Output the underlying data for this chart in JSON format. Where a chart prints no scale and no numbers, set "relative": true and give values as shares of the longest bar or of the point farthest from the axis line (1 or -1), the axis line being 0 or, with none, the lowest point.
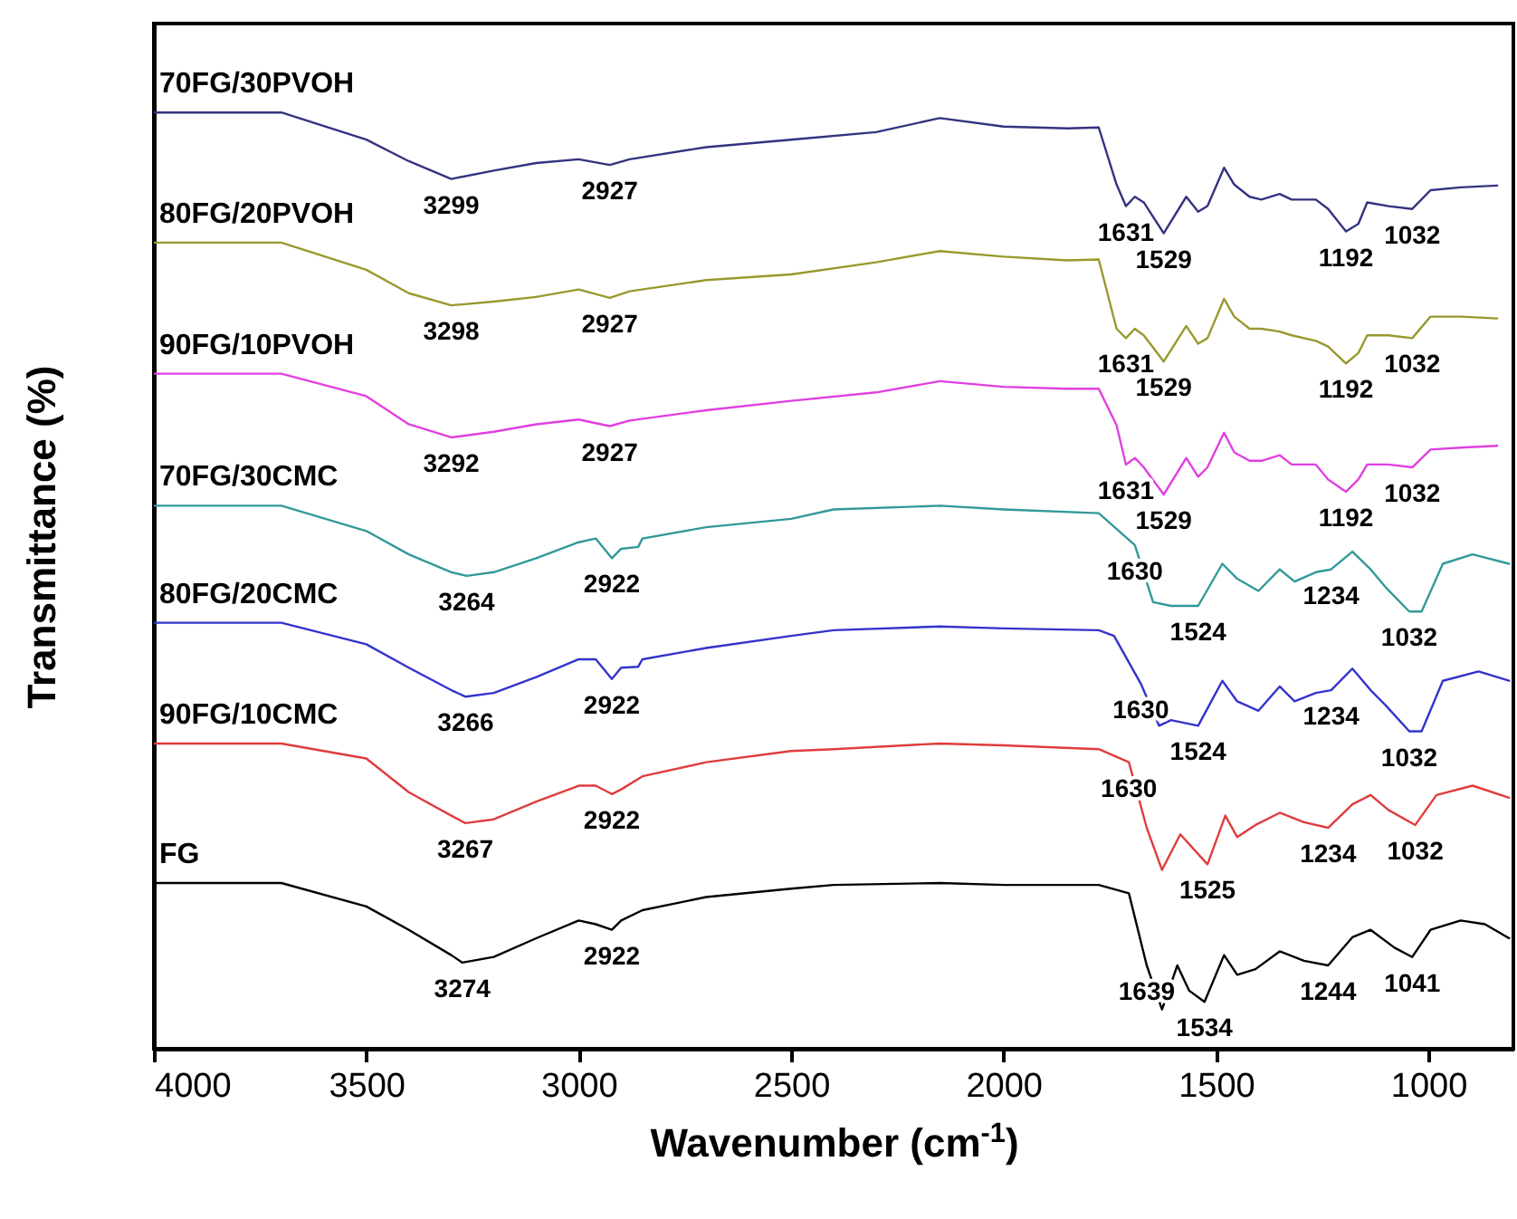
{
  "chart_data": {
    "type": "line",
    "relative": true,
    "xlabel": "Wavenumber (cm$^{-1}$)",
    "ylabel": "Transmittance (%)",
    "xlim": [
      4000,
      800
    ],
    "xticks": [
      4000,
      3500,
      3000,
      2500,
      2000,
      1500,
      1000
    ],
    "series": [
      {
        "name": "70FG/30PVOH",
        "color": "#333380",
        "x": [
          4000,
          3700,
          3500,
          3400,
          3300,
          3200,
          3100,
          3000,
          2927,
          2880,
          2700,
          2500,
          2300,
          2150,
          2000,
          1850,
          1776,
          1734,
          1712,
          1691,
          1670,
          1623,
          1570,
          1542,
          1520,
          1481,
          1457,
          1421,
          1393,
          1350,
          1322,
          1265,
          1236,
          1194,
          1165,
          1144,
          1094,
          1038,
          995,
          924,
          838
        ],
        "values": [
          1.0,
          1.0,
          0.971,
          0.948,
          0.929,
          0.938,
          0.946,
          0.95,
          0.944,
          0.95,
          0.963,
          0.971,
          0.979,
          0.994,
          0.985,
          0.983,
          0.984,
          0.923,
          0.9,
          0.91,
          0.904,
          0.871,
          0.91,
          0.894,
          0.9,
          0.941,
          0.923,
          0.91,
          0.907,
          0.913,
          0.907,
          0.907,
          0.897,
          0.873,
          0.881,
          0.904,
          0.9,
          0.897,
          0.917,
          0.92,
          0.922
        ]
      },
      {
        "name": "80FG/20PVOH",
        "color": "#99992e",
        "x": [
          4000,
          3700,
          3500,
          3400,
          3300,
          3200,
          3100,
          3000,
          2927,
          2880,
          2700,
          2500,
          2300,
          2150,
          2000,
          1850,
          1776,
          1734,
          1712,
          1691,
          1670,
          1623,
          1570,
          1542,
          1520,
          1481,
          1457,
          1421,
          1393,
          1350,
          1322,
          1265,
          1236,
          1194,
          1165,
          1144,
          1094,
          1038,
          995,
          924,
          838
        ],
        "values": [
          0.861,
          0.861,
          0.832,
          0.807,
          0.794,
          0.798,
          0.803,
          0.811,
          0.802,
          0.809,
          0.821,
          0.827,
          0.84,
          0.852,
          0.846,
          0.842,
          0.843,
          0.769,
          0.759,
          0.769,
          0.762,
          0.734,
          0.772,
          0.753,
          0.759,
          0.801,
          0.782,
          0.769,
          0.769,
          0.766,
          0.762,
          0.756,
          0.75,
          0.732,
          0.743,
          0.762,
          0.762,
          0.759,
          0.782,
          0.782,
          0.78
        ]
      },
      {
        "name": "90FG/10PVOH",
        "color": "#e040e0",
        "x": [
          4000,
          3700,
          3500,
          3400,
          3300,
          3200,
          3100,
          3000,
          2927,
          2880,
          2700,
          2500,
          2300,
          2150,
          2000,
          1850,
          1776,
          1734,
          1712,
          1691,
          1670,
          1623,
          1570,
          1542,
          1520,
          1481,
          1457,
          1421,
          1393,
          1350,
          1322,
          1265,
          1236,
          1194,
          1165,
          1144,
          1094,
          1038,
          995,
          924,
          838
        ],
        "values": [
          0.721,
          0.721,
          0.697,
          0.667,
          0.653,
          0.659,
          0.667,
          0.672,
          0.665,
          0.671,
          0.682,
          0.692,
          0.701,
          0.713,
          0.707,
          0.705,
          0.705,
          0.666,
          0.624,
          0.631,
          0.621,
          0.592,
          0.631,
          0.611,
          0.621,
          0.658,
          0.637,
          0.628,
          0.628,
          0.634,
          0.624,
          0.624,
          0.608,
          0.595,
          0.608,
          0.624,
          0.624,
          0.621,
          0.64,
          0.642,
          0.644
        ]
      },
      {
        "name": "70FG/30CMC",
        "color": "#339999",
        "x": [
          4000,
          3700,
          3500,
          3400,
          3300,
          3264,
          3200,
          3100,
          3000,
          2960,
          2922,
          2900,
          2860,
          2850,
          2700,
          2500,
          2400,
          2150,
          2000,
          1776,
          1691,
          1648,
          1606,
          1542,
          1485,
          1450,
          1400,
          1350,
          1315,
          1265,
          1229,
          1179,
          1136,
          1101,
          1045,
          1016,
          966,
          896,
          810
        ],
        "values": [
          0.58,
          0.58,
          0.553,
          0.528,
          0.509,
          0.505,
          0.509,
          0.524,
          0.541,
          0.545,
          0.524,
          0.534,
          0.536,
          0.545,
          0.557,
          0.566,
          0.576,
          0.58,
          0.576,
          0.572,
          0.538,
          0.477,
          0.473,
          0.473,
          0.518,
          0.502,
          0.489,
          0.512,
          0.499,
          0.509,
          0.512,
          0.531,
          0.512,
          0.493,
          0.467,
          0.467,
          0.518,
          0.528,
          0.518
        ]
      },
      {
        "name": "80FG/20CMC",
        "color": "#3333cc",
        "x": [
          4000,
          3700,
          3500,
          3400,
          3300,
          3266,
          3200,
          3100,
          3000,
          2960,
          2922,
          2900,
          2860,
          2850,
          2700,
          2500,
          2400,
          2150,
          2000,
          1776,
          1740,
          1677,
          1634,
          1606,
          1542,
          1485,
          1450,
          1400,
          1350,
          1315,
          1265,
          1229,
          1179,
          1136,
          1101,
          1045,
          1016,
          966,
          882,
          810
        ],
        "values": [
          0.455,
          0.455,
          0.432,
          0.407,
          0.383,
          0.376,
          0.38,
          0.397,
          0.416,
          0.416,
          0.395,
          0.407,
          0.408,
          0.416,
          0.428,
          0.441,
          0.447,
          0.451,
          0.449,
          0.447,
          0.441,
          0.39,
          0.345,
          0.351,
          0.345,
          0.393,
          0.371,
          0.361,
          0.387,
          0.371,
          0.38,
          0.383,
          0.406,
          0.383,
          0.367,
          0.339,
          0.339,
          0.393,
          0.403,
          0.393
        ]
      },
      {
        "name": "90FG/10CMC",
        "color": "#e03c3c",
        "x": [
          4000,
          3700,
          3500,
          3400,
          3300,
          3267,
          3200,
          3100,
          3000,
          2960,
          2922,
          2900,
          2850,
          2700,
          2500,
          2400,
          2150,
          2000,
          1776,
          1705,
          1663,
          1627,
          1584,
          1520,
          1478,
          1450,
          1407,
          1350,
          1293,
          1236,
          1179,
          1136,
          1094,
          1031,
          981,
          896,
          810
        ],
        "values": [
          0.326,
          0.326,
          0.31,
          0.274,
          0.249,
          0.241,
          0.245,
          0.264,
          0.281,
          0.281,
          0.272,
          0.277,
          0.291,
          0.306,
          0.318,
          0.32,
          0.326,
          0.324,
          0.32,
          0.306,
          0.236,
          0.191,
          0.229,
          0.197,
          0.249,
          0.226,
          0.239,
          0.252,
          0.242,
          0.236,
          0.261,
          0.271,
          0.255,
          0.239,
          0.271,
          0.281,
          0.268
        ]
      },
      {
        "name": "FG",
        "color": "#000000",
        "x": [
          4000,
          3700,
          3500,
          3400,
          3300,
          3274,
          3200,
          3100,
          3000,
          2960,
          2922,
          2900,
          2850,
          2700,
          2500,
          2400,
          2150,
          2000,
          1776,
          1705,
          1663,
          1627,
          1591,
          1563,
          1527,
          1481,
          1450,
          1407,
          1350,
          1293,
          1236,
          1179,
          1136,
          1080,
          1038,
          995,
          924,
          867,
          810
        ],
        "values": [
          0.177,
          0.177,
          0.152,
          0.127,
          0.1,
          0.092,
          0.098,
          0.118,
          0.137,
          0.133,
          0.127,
          0.137,
          0.148,
          0.162,
          0.171,
          0.175,
          0.177,
          0.175,
          0.175,
          0.166,
          0.089,
          0.042,
          0.089,
          0.062,
          0.05,
          0.1,
          0.079,
          0.085,
          0.104,
          0.094,
          0.089,
          0.119,
          0.127,
          0.108,
          0.098,
          0.127,
          0.137,
          0.133,
          0.118
        ]
      }
    ],
    "annotations": [
      {
        "text": "3299",
        "x": 3300,
        "y": 0.929
      },
      {
        "text": "2927",
        "x": 2927,
        "y": 0.944
      },
      {
        "text": "1631",
        "x": 1712,
        "y": 0.9
      },
      {
        "text": "1529",
        "x": 1623,
        "y": 0.871
      },
      {
        "text": "1192",
        "x": 1194,
        "y": 0.873
      },
      {
        "text": "1032",
        "x": 1038,
        "y": 0.897
      },
      {
        "text": "3298",
        "x": 3300,
        "y": 0.794
      },
      {
        "text": "2927",
        "x": 2927,
        "y": 0.802
      },
      {
        "text": "1631",
        "x": 1712,
        "y": 0.759
      },
      {
        "text": "1529",
        "x": 1623,
        "y": 0.734
      },
      {
        "text": "1192",
        "x": 1194,
        "y": 0.732
      },
      {
        "text": "1032",
        "x": 1038,
        "y": 0.759
      },
      {
        "text": "3292",
        "x": 3300,
        "y": 0.653
      },
      {
        "text": "2927",
        "x": 2927,
        "y": 0.665
      },
      {
        "text": "1631",
        "x": 1712,
        "y": 0.624
      },
      {
        "text": "1529",
        "x": 1623,
        "y": 0.592
      },
      {
        "text": "1192",
        "x": 1194,
        "y": 0.595
      },
      {
        "text": "1032",
        "x": 1038,
        "y": 0.621
      },
      {
        "text": "3264",
        "x": 3264,
        "y": 0.505
      },
      {
        "text": "2922",
        "x": 2922,
        "y": 0.524
      },
      {
        "text": "1630",
        "x": 1691,
        "y": 0.538
      },
      {
        "text": "1524",
        "x": 1542,
        "y": 0.473
      },
      {
        "text": "1234",
        "x": 1229,
        "y": 0.512
      },
      {
        "text": "1032",
        "x": 1045,
        "y": 0.467
      },
      {
        "text": "3266",
        "x": 3266,
        "y": 0.376
      },
      {
        "text": "2922",
        "x": 2922,
        "y": 0.395
      },
      {
        "text": "1630",
        "x": 1677,
        "y": 0.39
      },
      {
        "text": "1524",
        "x": 1542,
        "y": 0.345
      },
      {
        "text": "1234",
        "x": 1229,
        "y": 0.383
      },
      {
        "text": "1032",
        "x": 1045,
        "y": 0.339
      },
      {
        "text": "3267",
        "x": 3267,
        "y": 0.241
      },
      {
        "text": "2922",
        "x": 2922,
        "y": 0.272
      },
      {
        "text": "1630",
        "x": 1705,
        "y": 0.306
      },
      {
        "text": "1525",
        "x": 1520,
        "y": 0.197
      },
      {
        "text": "1234",
        "x": 1236,
        "y": 0.236
      },
      {
        "text": "1032",
        "x": 1031,
        "y": 0.239
      },
      {
        "text": "3274",
        "x": 3274,
        "y": 0.092
      },
      {
        "text": "2922",
        "x": 2922,
        "y": 0.127
      },
      {
        "text": "1639",
        "x": 1663,
        "y": 0.089
      },
      {
        "text": "1534",
        "x": 1527,
        "y": 0.05
      },
      {
        "text": "1244",
        "x": 1236,
        "y": 0.089
      },
      {
        "text": "1041",
        "x": 1038,
        "y": 0.098
      }
    ]
  }
}
